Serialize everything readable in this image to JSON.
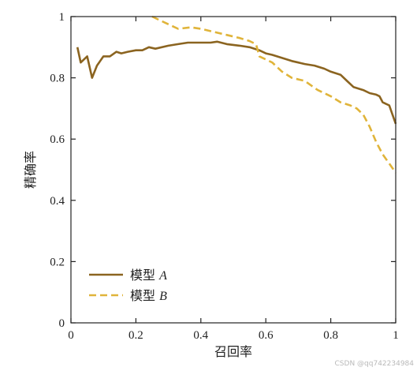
{
  "chart_data": {
    "type": "line",
    "title": "",
    "xlabel": "召回率",
    "ylabel": "精确率",
    "xlim": [
      0,
      1
    ],
    "ylim": [
      0,
      1
    ],
    "xticks": [
      "0",
      "0.2",
      "0.4",
      "0.6",
      "0.8",
      "1"
    ],
    "yticks": [
      "0",
      "0.2",
      "0.4",
      "0.6",
      "0.8",
      "1"
    ],
    "grid": false,
    "legend_position": "bottom-left",
    "series": [
      {
        "name": "模型 A",
        "name_text": "模型 ",
        "name_italic": "A",
        "color": "#8B6420",
        "style": "solid",
        "x": [
          0.02,
          0.03,
          0.05,
          0.065,
          0.08,
          0.1,
          0.12,
          0.14,
          0.155,
          0.175,
          0.2,
          0.22,
          0.24,
          0.26,
          0.3,
          0.33,
          0.36,
          0.4,
          0.43,
          0.45,
          0.48,
          0.52,
          0.55,
          0.58,
          0.6,
          0.62,
          0.65,
          0.68,
          0.7,
          0.72,
          0.75,
          0.78,
          0.8,
          0.83,
          0.85,
          0.87,
          0.9,
          0.92,
          0.94,
          0.95,
          0.96,
          0.97,
          0.98,
          0.99,
          1.0
        ],
        "y": [
          0.9,
          0.85,
          0.87,
          0.8,
          0.84,
          0.87,
          0.87,
          0.885,
          0.88,
          0.885,
          0.89,
          0.89,
          0.9,
          0.895,
          0.905,
          0.91,
          0.915,
          0.915,
          0.915,
          0.918,
          0.91,
          0.905,
          0.9,
          0.89,
          0.88,
          0.875,
          0.865,
          0.855,
          0.85,
          0.845,
          0.84,
          0.83,
          0.82,
          0.81,
          0.79,
          0.77,
          0.76,
          0.75,
          0.745,
          0.74,
          0.72,
          0.715,
          0.71,
          0.68,
          0.65
        ]
      },
      {
        "name": "模型 B",
        "name_text": "模型 ",
        "name_italic": "B",
        "color": "#E0B43A",
        "style": "dashed",
        "x": [
          0.25,
          0.27,
          0.29,
          0.31,
          0.33,
          0.37,
          0.4,
          0.44,
          0.48,
          0.52,
          0.55,
          0.56,
          0.57,
          0.58,
          0.6,
          0.62,
          0.65,
          0.68,
          0.72,
          0.76,
          0.8,
          0.83,
          0.86,
          0.88,
          0.9,
          0.92,
          0.94,
          0.96,
          0.98,
          1.0
        ],
        "y": [
          1.0,
          0.99,
          0.98,
          0.97,
          0.96,
          0.965,
          0.96,
          0.95,
          0.94,
          0.93,
          0.92,
          0.915,
          0.91,
          0.87,
          0.86,
          0.85,
          0.82,
          0.8,
          0.79,
          0.76,
          0.74,
          0.72,
          0.71,
          0.7,
          0.68,
          0.64,
          0.59,
          0.55,
          0.52,
          0.49
        ]
      }
    ]
  },
  "watermark": "CSDN @qq742234984"
}
